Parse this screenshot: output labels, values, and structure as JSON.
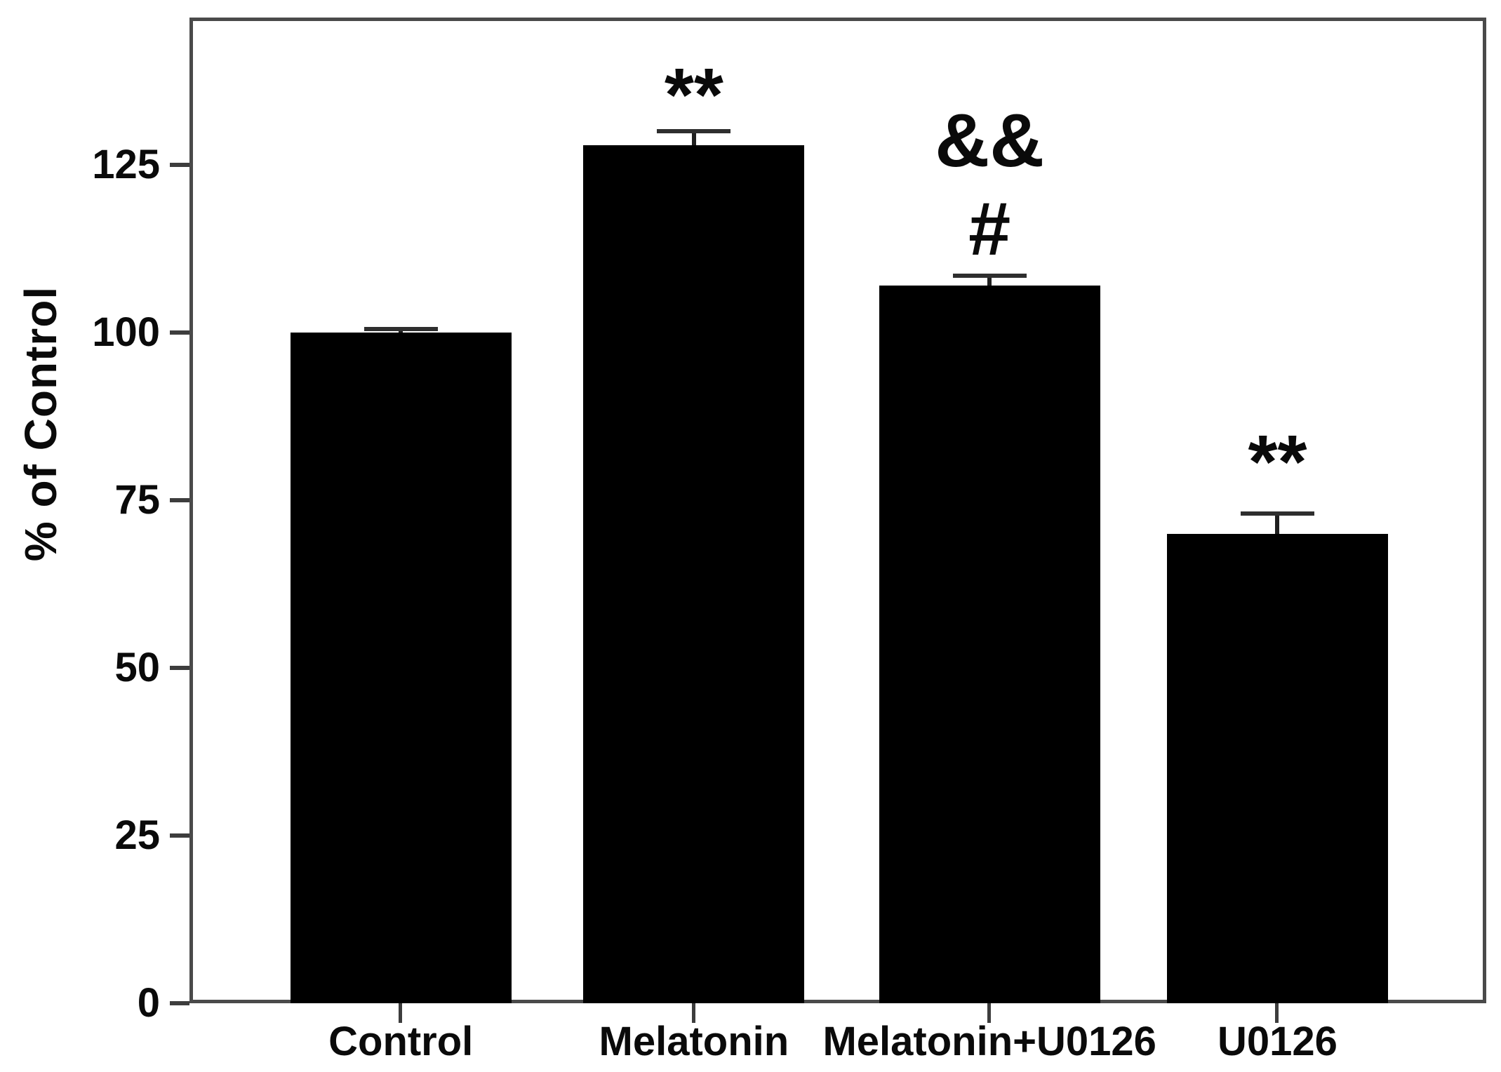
{
  "figure": {
    "background": "#ffffff"
  },
  "chart_data": {
    "type": "bar",
    "title": "",
    "xlabel": "",
    "ylabel": "% of Control",
    "categories": [
      "Control",
      "Melatonin",
      "Melatonin+U0126",
      "U0126"
    ],
    "values": [
      100,
      128,
      107,
      70
    ],
    "errors": [
      0.5,
      2,
      1.5,
      3
    ],
    "error_bars": "upper",
    "annotations": [
      [],
      [
        "**"
      ],
      [
        "&&",
        "#"
      ],
      [
        "**"
      ]
    ],
    "yticks": [
      0,
      25,
      50,
      75,
      100,
      125
    ],
    "ylim": [
      0,
      147
    ],
    "bar_color": "#000000",
    "axis_color": "#4a4a4a",
    "text_color": "#0a0a0a",
    "grid": false,
    "legend": null
  }
}
